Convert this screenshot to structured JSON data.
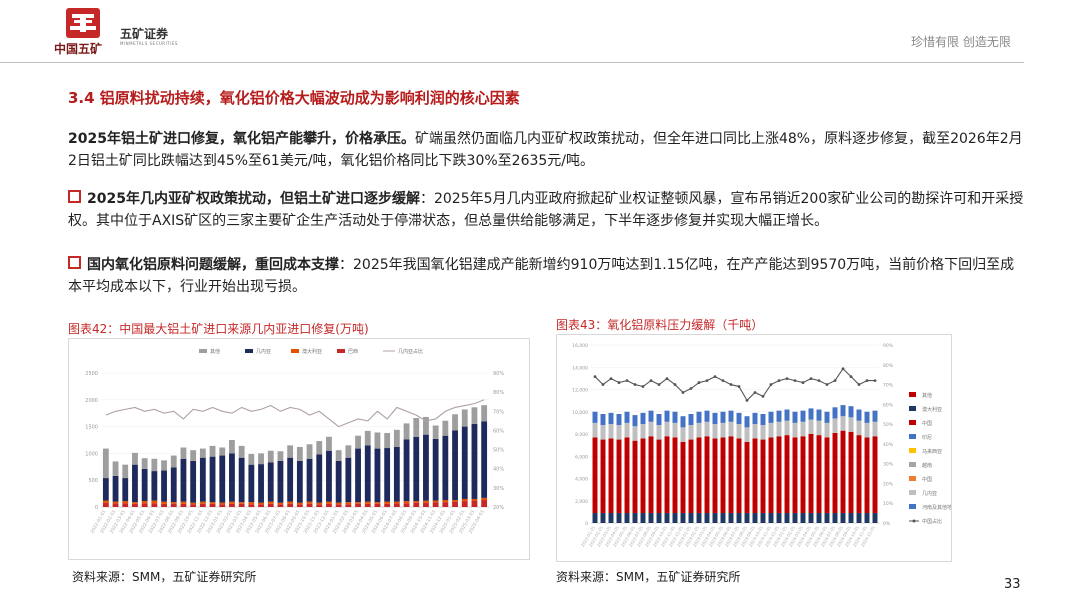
{
  "header": {
    "logo_mark_text": "CHINA MINMETALS",
    "logo_text": "中国五矿",
    "brand": "五矿证券",
    "brand_sub": "MINMETALS SECURITIES",
    "slogan": "珍惜有限 创造无限"
  },
  "section_title": "3.4 铝原料扰动持续，氧化铝价格大幅波动成为影响利润的核心因素",
  "summary": {
    "bold": "2025年铝土矿进口修复，氧化铝产能攀升，价格承压。",
    "text": "矿端虽然仍面临几内亚矿权政策扰动，但全年进口同比上涨48%，原料逐步修复，截至2026年2月2日铝土矿同比跌幅达到45%至61美元/吨，氧化铝价格同比下跌30%至2635元/吨。"
  },
  "bullets": [
    {
      "bold": "2025年几内亚矿权政策扰动，但铝土矿进口逐步缓解",
      "text": "：2025年5月几内亚政府掀起矿业权证整顿风暴，宣布吊销近200家矿业公司的勘探许可和开采授权。其中位于AXIS矿区的三家主要矿企生产活动处于停滞状态，但总量供给能够满足，下半年逐步修复并实现大幅正增长。"
    },
    {
      "bold": "国内氧化铝原料问题缓解，重回成本支撑",
      "text": "：2025年我国氧化铝建成产能新增约910万吨达到1.15亿吨，在产产能达到9570万吨，当前价格下回归至成本平均成本以下，行业开始出现亏损。"
    }
  ],
  "chart1": {
    "title": "图表42：中国最大铝土矿进口来源几内亚进口修复(万吨)",
    "source": "资料来源：SMM，五矿证券研究所"
  },
  "chart2": {
    "title": "图表43：氧化铝原料压力缓解（千吨）",
    "source": "资料来源：SMM，五矿证券研究所"
  },
  "page_number": "33",
  "chart_data": [
    {
      "type": "bar",
      "title": "图表42：中国最大铝土矿进口来源几内亚进口修复(万吨)",
      "series": [
        {
          "name": "其他",
          "color": "#9e9e9e",
          "values": [
            550,
            270,
            250,
            220,
            200,
            230,
            190,
            220,
            210,
            200,
            170,
            200,
            150,
            250,
            220,
            200,
            200,
            220,
            180,
            230,
            260,
            270,
            250,
            260,
            200,
            230,
            240,
            270,
            300,
            280,
            320,
            300,
            350,
            330,
            250,
            280,
            300,
            320,
            310,
            300
          ]
        },
        {
          "name": "几内亚",
          "color": "#1f2a5c",
          "values": [
            420,
            480,
            430,
            700,
            600,
            550,
            580,
            650,
            800,
            780,
            820,
            850,
            880,
            900,
            830,
            700,
            720,
            730,
            780,
            820,
            780,
            800,
            900,
            950,
            780,
            830,
            1000,
            1050,
            1000,
            1000,
            1020,
            1150,
            1200,
            1230,
            1150,
            1200,
            1300,
            1350,
            1400,
            1430
          ]
        },
        {
          "name": "澳大利亚",
          "color": "#e65100",
          "values": [
            40,
            30,
            40,
            30,
            40,
            50,
            40,
            30,
            40,
            30,
            40,
            30,
            30,
            40,
            30,
            40,
            30,
            40,
            30,
            40,
            30,
            40,
            30,
            40,
            30,
            40,
            30,
            40,
            30,
            40,
            30,
            40,
            30,
            40,
            30,
            40,
            30,
            40,
            30,
            40
          ]
        },
        {
          "name": "巴西",
          "color": "#c62828",
          "values": [
            80,
            70,
            70,
            60,
            70,
            70,
            60,
            60,
            60,
            50,
            60,
            60,
            50,
            60,
            60,
            50,
            50,
            60,
            50,
            60,
            50,
            60,
            50,
            60,
            50,
            50,
            60,
            60,
            60,
            60,
            70,
            70,
            80,
            80,
            90,
            90,
            100,
            110,
            120,
            130
          ]
        }
      ],
      "line_series": {
        "name": "几内亚占比",
        "color": "#b0a0a8",
        "values": [
          0.68,
          0.7,
          0.71,
          0.72,
          0.7,
          0.71,
          0.69,
          0.7,
          0.66,
          0.71,
          0.7,
          0.72,
          0.7,
          0.69,
          0.72,
          0.7,
          0.71,
          0.73,
          0.7,
          0.72,
          0.71,
          0.68,
          0.7,
          0.66,
          0.62,
          0.64,
          0.66,
          0.65,
          0.7,
          0.66,
          0.72,
          0.7,
          0.68,
          0.65,
          0.66,
          0.7,
          0.72,
          0.73,
          0.74,
          0.76
        ]
      },
      "ylim": [
        0,
        2500
      ],
      "y_ticks": [
        "0",
        "500",
        "1000",
        "1500",
        "2000",
        "2500"
      ],
      "y2_ticks": [
        "20%",
        "30%",
        "40%",
        "50%",
        "60%",
        "70%",
        "80%",
        "90%"
      ],
      "x_labels": [
        "2022-01-01",
        "2022-02-01",
        "2022-03-01",
        "2022-04-01",
        "2022-05-01",
        "2022-06-01",
        "2022-07-01",
        "2022-08-01",
        "2022-09-01",
        "2022-10-01",
        "2022-11-01",
        "2022-12-01",
        "2023-01-01",
        "2023-02-01",
        "2023-03-01",
        "2023-04-01",
        "2023-05-01",
        "2023-06-01",
        "2023-07-01",
        "2023-08-01",
        "2023-09-01",
        "2023-10-01",
        "2023-11-01",
        "2023-12-01",
        "2024-01-01",
        "2024-02-01",
        "2024-03-01",
        "2024-04-01",
        "2024-05-01",
        "2024-06-01",
        "2024-07-01",
        "2024-08-01",
        "2024-09-01",
        "2024-10-01",
        "2024-11-01",
        "2024-12-01",
        "2025-01-01",
        "2025-02-01",
        "2025-03-01",
        "2025-04-01"
      ]
    },
    {
      "type": "bar",
      "title": "图表43：氧化铝原料压力缓解（千吨）",
      "series": [
        {
          "name": "河南及其他地区",
          "color": "#4472c4",
          "values": [
            1000,
            1000,
            1000,
            1000,
            1000,
            1000,
            1000,
            1000,
            1000,
            1000,
            1000,
            1000,
            1000,
            1000,
            1000,
            1000,
            1000,
            1000,
            1000,
            1000,
            1000,
            1000,
            1000,
            1000,
            1000,
            1000,
            1000,
            1000,
            1000,
            1000,
            1000,
            1000,
            1000,
            1000,
            1000,
            1000
          ]
        },
        {
          "name": "其他",
          "color": "#bfbfbf",
          "values": [
            1300,
            1300,
            1300,
            1300,
            1300,
            1300,
            1300,
            1300,
            1300,
            1300,
            1300,
            1300,
            1300,
            1300,
            1300,
            1300,
            1300,
            1300,
            1300,
            1300,
            1300,
            1300,
            1300,
            1300,
            1300,
            1300,
            1300,
            1300,
            1300,
            1300,
            1300,
            1300,
            1300,
            1300,
            1300,
            1300
          ]
        },
        {
          "name": "中国",
          "color": "#c00000",
          "values": [
            6800,
            6600,
            6700,
            6600,
            6800,
            6500,
            6700,
            6900,
            6600,
            6900,
            6800,
            6400,
            6600,
            6800,
            6900,
            6700,
            6800,
            6900,
            6700,
            6400,
            6700,
            6600,
            6800,
            6900,
            7000,
            6800,
            6900,
            7100,
            7000,
            6800,
            7200,
            7400,
            7300,
            7000,
            6800,
            6900
          ]
        },
        {
          "name": "澳大利亚",
          "color": "#1f3864",
          "values": [
            900,
            900,
            900,
            900,
            900,
            900,
            900,
            900,
            900,
            900,
            900,
            900,
            900,
            900,
            900,
            900,
            900,
            900,
            900,
            900,
            900,
            900,
            900,
            900,
            900,
            900,
            900,
            900,
            900,
            900,
            900,
            900,
            900,
            900,
            900,
            900
          ]
        }
      ],
      "line_series": {
        "name": "中国占比",
        "color": "#555555",
        "values": [
          0.74,
          0.7,
          0.73,
          0.71,
          0.72,
          0.7,
          0.69,
          0.72,
          0.7,
          0.73,
          0.7,
          0.66,
          0.68,
          0.71,
          0.72,
          0.74,
          0.72,
          0.7,
          0.69,
          0.62,
          0.66,
          0.64,
          0.7,
          0.72,
          0.73,
          0.72,
          0.71,
          0.73,
          0.72,
          0.7,
          0.72,
          0.78,
          0.74,
          0.7,
          0.72,
          0.72
        ]
      },
      "ylim": [
        0,
        16000
      ],
      "y_ticks": [
        "0",
        "2,000",
        "4,000",
        "6,000",
        "8,000",
        "10,000",
        "12,000",
        "14,000",
        "16,000"
      ],
      "y2_ticks": [
        "0%",
        "10%",
        "20%",
        "30%",
        "40%",
        "50%",
        "60%",
        "70%",
        "80%",
        "90%"
      ],
      "legend": [
        "其他",
        "澳大利亚",
        "中国",
        "印尼",
        "马来西亚",
        "越南",
        "中国",
        "几内亚",
        "河南及其他地区",
        "中国占比"
      ],
      "x_labels": [
        "2022-01-01",
        "2022-02-01",
        "2022-03-01",
        "2022-04-01",
        "2022-05-01",
        "2022-06-01",
        "2022-07-01",
        "2022-08-01",
        "2022-09-01",
        "2022-10-01",
        "2022-11-01",
        "2022-12-01",
        "2023-01-01",
        "2023-02-01",
        "2023-03-01",
        "2023-04-01",
        "2023-05-01",
        "2023-06-01",
        "2023-07-01",
        "2023-08-01",
        "2023-09-01",
        "2023-10-01",
        "2023-11-01",
        "2023-12-01",
        "2024-01-01",
        "2024-02-01",
        "2024-03-01",
        "2024-04-01",
        "2024-05-01",
        "2024-06-01",
        "2024-07-01",
        "2024-08-01",
        "2024-09-01",
        "2024-10-01",
        "2024-11-01",
        "2024-12-01"
      ]
    }
  ]
}
